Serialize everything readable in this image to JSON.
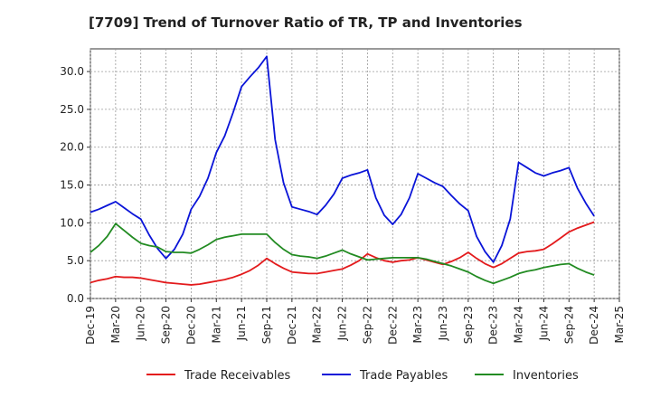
{
  "chart_data": {
    "type": "line",
    "title": "[7709]  Trend of Turnover Ratio of TR, TP and Inventories",
    "xlabel": "",
    "ylabel": "",
    "ylim": [
      0,
      33
    ],
    "yticks": [
      "0.0",
      "5.0",
      "10.0",
      "15.0",
      "20.0",
      "25.0",
      "30.0"
    ],
    "xlim": [
      "Dec-19",
      "Mar-25"
    ],
    "xticks": [
      "Dec-19",
      "Mar-20",
      "Jun-20",
      "Sep-20",
      "Dec-20",
      "Mar-21",
      "Jun-21",
      "Sep-21",
      "Dec-21",
      "Mar-22",
      "Jun-22",
      "Sep-22",
      "Dec-22",
      "Mar-23",
      "Jun-23",
      "Sep-23",
      "Dec-23",
      "Mar-24",
      "Jun-24",
      "Sep-24",
      "Dec-24",
      "Mar-25"
    ],
    "grid": true,
    "legend_position": "bottom",
    "x": [
      "Dec-19",
      "Jan-20",
      "Feb-20",
      "Mar-20",
      "Apr-20",
      "May-20",
      "Jun-20",
      "Jul-20",
      "Aug-20",
      "Sep-20",
      "Oct-20",
      "Nov-20",
      "Dec-20",
      "Jan-21",
      "Feb-21",
      "Mar-21",
      "Apr-21",
      "May-21",
      "Jun-21",
      "Jul-21",
      "Aug-21",
      "Sep-21",
      "Oct-21",
      "Nov-21",
      "Dec-21",
      "Jan-22",
      "Feb-22",
      "Mar-22",
      "Apr-22",
      "May-22",
      "Jun-22",
      "Jul-22",
      "Aug-22",
      "Sep-22",
      "Oct-22",
      "Nov-22",
      "Dec-22",
      "Jan-23",
      "Feb-23",
      "Mar-23",
      "Apr-23",
      "May-23",
      "Jun-23",
      "Jul-23",
      "Aug-23",
      "Sep-23",
      "Oct-23",
      "Nov-23",
      "Dec-23",
      "Jan-24",
      "Feb-24",
      "Mar-24",
      "Apr-24",
      "May-24",
      "Jun-24",
      "Jul-24",
      "Aug-24",
      "Sep-24",
      "Oct-24",
      "Nov-24",
      "Dec-24"
    ],
    "series": [
      {
        "name": "Trade Receivables",
        "color": "#e31a1c",
        "values": [
          2.1,
          2.4,
          2.6,
          2.9,
          2.8,
          2.8,
          2.7,
          2.5,
          2.3,
          2.1,
          2.0,
          1.9,
          1.8,
          1.9,
          2.1,
          2.3,
          2.5,
          2.8,
          3.2,
          3.7,
          4.4,
          5.3,
          4.6,
          4.0,
          3.5,
          3.4,
          3.3,
          3.3,
          3.5,
          3.7,
          3.9,
          4.4,
          5.0,
          5.9,
          5.4,
          5.0,
          4.8,
          5.0,
          5.1,
          5.4,
          5.1,
          4.8,
          4.5,
          4.9,
          5.4,
          6.1,
          5.3,
          4.6,
          4.1,
          4.6,
          5.3,
          6.0,
          6.2,
          6.3,
          6.5,
          7.2,
          8.0,
          8.8,
          9.3,
          9.7,
          10.1
        ]
      },
      {
        "name": "Trade Payables",
        "color": "#0a14d8",
        "values": [
          11.4,
          11.8,
          12.3,
          12.8,
          12.0,
          11.2,
          10.5,
          8.4,
          6.6,
          5.3,
          6.5,
          8.5,
          11.8,
          13.5,
          15.9,
          19.3,
          21.5,
          24.6,
          28.0,
          29.3,
          30.5,
          32.0,
          21.0,
          15.3,
          12.1,
          11.8,
          11.5,
          11.1,
          12.3,
          13.8,
          15.9,
          16.3,
          16.6,
          17.0,
          13.3,
          11.0,
          9.8,
          11.1,
          13.3,
          16.5,
          15.9,
          15.3,
          14.8,
          13.6,
          12.5,
          11.6,
          8.2,
          6.2,
          4.8,
          7.0,
          10.5,
          18.0,
          17.3,
          16.6,
          16.2,
          16.6,
          16.9,
          17.3,
          14.6,
          12.6,
          10.9
        ]
      },
      {
        "name": "Inventories",
        "color": "#228b22",
        "values": [
          6.1,
          7.0,
          8.2,
          9.9,
          9.0,
          8.1,
          7.3,
          7.0,
          6.8,
          6.2,
          6.1,
          6.1,
          6.0,
          6.5,
          7.1,
          7.8,
          8.1,
          8.3,
          8.5,
          8.5,
          8.5,
          8.5,
          7.4,
          6.5,
          5.8,
          5.6,
          5.5,
          5.3,
          5.6,
          6.0,
          6.4,
          5.9,
          5.5,
          5.1,
          5.2,
          5.3,
          5.4,
          5.4,
          5.4,
          5.4,
          5.2,
          4.9,
          4.6,
          4.3,
          3.9,
          3.5,
          2.9,
          2.4,
          2.0,
          2.4,
          2.8,
          3.3,
          3.6,
          3.8,
          4.1,
          4.3,
          4.5,
          4.6,
          4.0,
          3.5,
          3.1
        ]
      }
    ]
  }
}
